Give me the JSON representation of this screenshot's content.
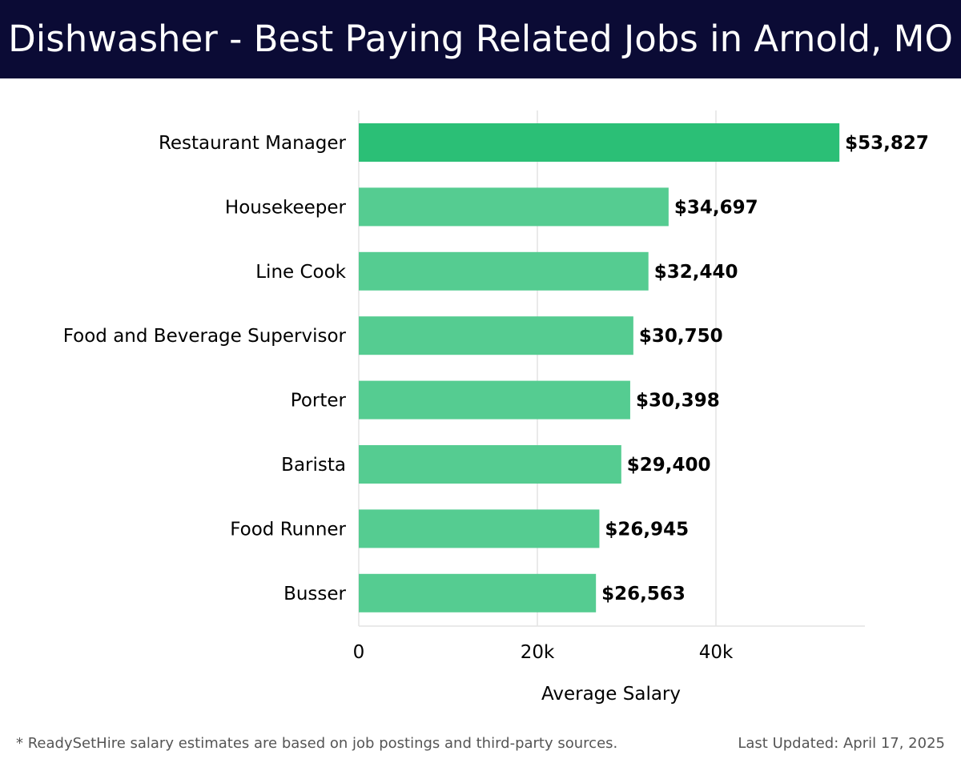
{
  "colors": {
    "header_bg": "#0b0b35",
    "top_bar": "#2bbf76",
    "bar": "#55cc91",
    "grid": "#e3e3e3",
    "label_text": "#000000",
    "footer_text": "#555555"
  },
  "footer": {
    "note": "* ReadySetHire salary estimates are based on job postings and third-party sources.",
    "updated": "Last Updated: April 17, 2025"
  },
  "chart_data": {
    "type": "bar",
    "orientation": "horizontal",
    "title": "Dishwasher - Best Paying Related Jobs in Arnold, MO",
    "xlabel": "Average Salary",
    "ylabel": "",
    "xlim": [
      0,
      56500
    ],
    "x_ticks": [
      0,
      20000,
      40000
    ],
    "x_tick_labels": [
      "0",
      "20k",
      "40k"
    ],
    "grid": "vertical",
    "categories": [
      "Restaurant Manager",
      "Housekeeper",
      "Line Cook",
      "Food and Beverage Supervisor",
      "Porter",
      "Barista",
      "Food Runner",
      "Busser"
    ],
    "values": [
      53827,
      34697,
      32440,
      30750,
      30398,
      29400,
      26945,
      26563
    ],
    "value_labels": [
      "$53,827",
      "$34,697",
      "$32,440",
      "$30,750",
      "$30,398",
      "$29,400",
      "$26,945",
      "$26,563"
    ]
  }
}
